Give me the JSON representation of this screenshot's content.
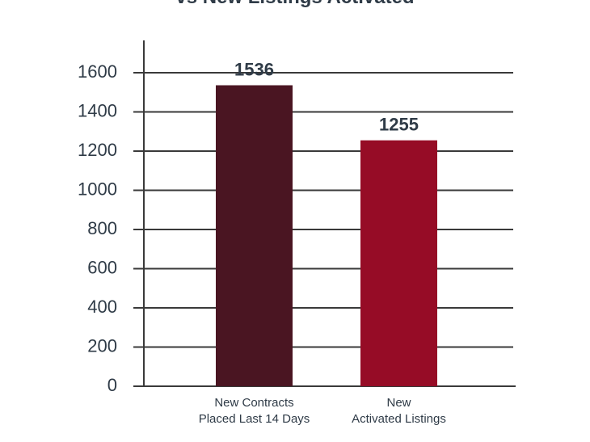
{
  "chart_data": {
    "type": "bar",
    "title": "vs New Listings Activated",
    "categories": [
      "New Contracts\nPlaced Last 14 Days",
      "New\nActivated Listings"
    ],
    "values": [
      1536,
      1255
    ],
    "colors": [
      "#4a1522",
      "#960c26"
    ],
    "ylim": [
      0,
      1600
    ],
    "yticks": [
      0,
      200,
      400,
      600,
      800,
      1000,
      1200,
      1400,
      1600
    ],
    "grid": true
  }
}
